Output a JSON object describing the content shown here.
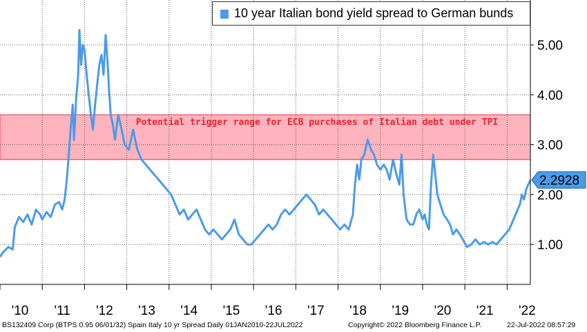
{
  "chart_data": {
    "type": "line",
    "series": [
      {
        "name": "10 year Italian bond yield spread to German bunds",
        "color": "#4a9bea",
        "x": [
          2010.0,
          2010.08,
          2010.2,
          2010.3,
          2010.35,
          2010.45,
          2010.55,
          2010.65,
          2010.75,
          2010.85,
          2010.95,
          2011.0,
          2011.1,
          2011.2,
          2011.3,
          2011.4,
          2011.47,
          2011.53,
          2011.58,
          2011.62,
          2011.67,
          2011.72,
          2011.75,
          2011.8,
          2011.85,
          2011.88,
          2011.92,
          2011.96,
          2012.0,
          2012.05,
          2012.1,
          2012.15,
          2012.2,
          2012.25,
          2012.3,
          2012.35,
          2012.4,
          2012.45,
          2012.5,
          2012.55,
          2012.58,
          2012.62,
          2012.67,
          2012.72,
          2012.8,
          2012.88,
          2012.95,
          2013.05,
          2013.15,
          2013.25,
          2013.35,
          2013.45,
          2013.55,
          2013.65,
          2013.75,
          2013.85,
          2013.95,
          2014.05,
          2014.15,
          2014.25,
          2014.35,
          2014.45,
          2014.55,
          2014.65,
          2014.75,
          2014.85,
          2014.95,
          2015.05,
          2015.15,
          2015.25,
          2015.35,
          2015.45,
          2015.55,
          2015.65,
          2015.75,
          2015.85,
          2015.95,
          2016.05,
          2016.15,
          2016.25,
          2016.35,
          2016.45,
          2016.55,
          2016.65,
          2016.75,
          2016.85,
          2016.95,
          2017.05,
          2017.15,
          2017.25,
          2017.35,
          2017.45,
          2017.55,
          2017.65,
          2017.75,
          2017.85,
          2017.95,
          2018.05,
          2018.15,
          2018.25,
          2018.35,
          2018.4,
          2018.45,
          2018.5,
          2018.55,
          2018.62,
          2018.7,
          2018.78,
          2018.85,
          2018.92,
          2019.0,
          2019.08,
          2019.15,
          2019.22,
          2019.3,
          2019.38,
          2019.45,
          2019.5,
          2019.55,
          2019.62,
          2019.7,
          2019.78,
          2019.85,
          2019.92,
          2020.0,
          2020.05,
          2020.1,
          2020.15,
          2020.2,
          2020.25,
          2020.3,
          2020.35,
          2020.42,
          2020.5,
          2020.58,
          2020.65,
          2020.72,
          2020.8,
          2020.88,
          2020.95,
          2021.05,
          2021.15,
          2021.25,
          2021.35,
          2021.45,
          2021.55,
          2021.65,
          2021.75,
          2021.85,
          2021.95,
          2022.05,
          2022.15,
          2022.2,
          2022.25,
          2022.3,
          2022.35,
          2022.4,
          2022.45,
          2022.5,
          2022.55
        ],
        "y": [
          0.75,
          0.85,
          0.95,
          0.9,
          1.35,
          1.55,
          1.45,
          1.6,
          1.4,
          1.7,
          1.6,
          1.5,
          1.65,
          1.55,
          1.8,
          1.85,
          1.7,
          1.9,
          2.3,
          2.7,
          3.3,
          3.8,
          3.1,
          3.9,
          4.4,
          5.3,
          4.6,
          5.0,
          4.9,
          4.4,
          4.0,
          3.6,
          3.3,
          3.8,
          4.2,
          4.6,
          4.8,
          4.4,
          5.2,
          4.6,
          4.1,
          3.6,
          3.4,
          3.1,
          3.6,
          3.3,
          3.0,
          2.9,
          3.3,
          2.9,
          2.7,
          2.6,
          2.5,
          2.4,
          2.3,
          2.2,
          2.1,
          2.0,
          1.8,
          1.6,
          1.7,
          1.5,
          1.6,
          1.7,
          1.5,
          1.3,
          1.2,
          1.3,
          1.2,
          1.1,
          1.2,
          1.3,
          1.5,
          1.2,
          1.1,
          1.0,
          1.0,
          1.1,
          1.2,
          1.3,
          1.4,
          1.3,
          1.4,
          1.6,
          1.7,
          1.6,
          1.7,
          1.8,
          1.9,
          2.0,
          1.9,
          1.8,
          1.6,
          1.7,
          1.6,
          1.5,
          1.4,
          1.3,
          1.4,
          1.3,
          1.6,
          2.2,
          2.6,
          2.3,
          2.7,
          2.8,
          3.1,
          2.9,
          2.8,
          2.6,
          2.5,
          2.6,
          2.5,
          2.3,
          2.7,
          2.4,
          2.2,
          2.8,
          2.0,
          1.5,
          1.4,
          1.4,
          1.6,
          1.7,
          1.5,
          1.6,
          1.4,
          1.3,
          2.2,
          2.8,
          2.4,
          2.0,
          1.8,
          1.6,
          1.5,
          1.4,
          1.2,
          1.3,
          1.2,
          1.1,
          0.95,
          1.0,
          1.1,
          1.0,
          1.05,
          1.0,
          1.05,
          1.0,
          1.1,
          1.2,
          1.3,
          1.5,
          1.6,
          1.7,
          1.8,
          2.0,
          1.9,
          2.1,
          2.2,
          2.29
        ]
      }
    ],
    "band": {
      "from": 2.7,
      "to": 3.6,
      "label": "Potential trigger range for ECB purchases of Italian debt under TPI",
      "fill": "#ffb3bd",
      "edge": "#e2394a",
      "label_color": "#e5242f"
    },
    "x_range": [
      2010.0,
      2022.55
    ],
    "ylim": [
      0.2,
      5.9
    ],
    "y_ticks": [
      1.0,
      2.0,
      3.0,
      4.0,
      5.0
    ],
    "y_tick_labels": [
      "1.00",
      "2.00",
      "3.00",
      "4.00",
      "5.00"
    ],
    "x_ticks": [
      {
        "label": "'10",
        "x": 2010.0
      },
      {
        "label": "'11",
        "x": 2011.0
      },
      {
        "label": "'12",
        "x": 2012.0
      },
      {
        "label": "'13",
        "x": 2013.0
      },
      {
        "label": "'14",
        "x": 2014.0
      },
      {
        "label": "'15",
        "x": 2015.0
      },
      {
        "label": "'16",
        "x": 2016.0
      },
      {
        "label": "'17",
        "x": 2017.0
      },
      {
        "label": "'18",
        "x": 2018.0
      },
      {
        "label": "'19",
        "x": 2019.0
      },
      {
        "label": "'20",
        "x": 2020.0
      },
      {
        "label": "'21",
        "x": 2021.0
      },
      {
        "label": "'22",
        "x": 2022.0
      }
    ],
    "last_value": 2.2928,
    "last_value_label": "2.2928",
    "grid": true,
    "legend_position": "top-right"
  },
  "footer": {
    "left": "BS132409 Corp (BTPS 0.95 06/01/32) Spain Italy 10 yr Spread  Daily 01JAN2010-22JUL2022",
    "center": "Copyright© 2022 Bloomberg Finance L.P.",
    "right": "22-Jul-2022 08:57:29"
  }
}
